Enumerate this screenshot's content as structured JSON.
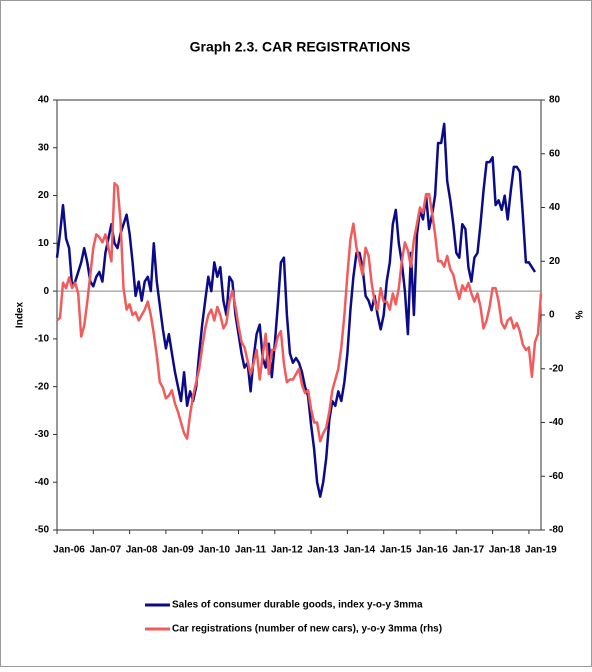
{
  "chart_data": {
    "type": "line",
    "title": "Graph 2.3. CAR REGISTRATIONS",
    "y_label": "Index",
    "y2_label": "%",
    "categories": [
      "Jan-06",
      null,
      null,
      null,
      null,
      null,
      null,
      null,
      null,
      null,
      null,
      null,
      "Jan-07",
      null,
      null,
      null,
      null,
      null,
      null,
      null,
      null,
      null,
      null,
      null,
      "Jan-08",
      null,
      null,
      null,
      null,
      null,
      null,
      null,
      null,
      null,
      null,
      null,
      "Jan-09",
      null,
      null,
      null,
      null,
      null,
      null,
      null,
      null,
      null,
      null,
      null,
      "Jan-10",
      null,
      null,
      null,
      null,
      null,
      null,
      null,
      null,
      null,
      null,
      null,
      "Jan-11",
      null,
      null,
      null,
      null,
      null,
      null,
      null,
      null,
      null,
      null,
      null,
      "Jan-12",
      null,
      null,
      null,
      null,
      null,
      null,
      null,
      null,
      null,
      null,
      null,
      "Jan-13",
      null,
      null,
      null,
      null,
      null,
      null,
      null,
      null,
      null,
      null,
      null,
      "Jan-14",
      null,
      null,
      null,
      null,
      null,
      null,
      null,
      null,
      null,
      null,
      null,
      "Jan-15",
      null,
      null,
      null,
      null,
      null,
      null,
      null,
      null,
      null,
      null,
      null,
      "Jan-16",
      null,
      null,
      null,
      null,
      null,
      null,
      null,
      null,
      null,
      null,
      null,
      "Jan-17",
      null,
      null,
      null,
      null,
      null,
      null,
      null,
      null,
      null,
      null,
      null,
      "Jan-18",
      null,
      null,
      null,
      null,
      null,
      null,
      null,
      null,
      null,
      null,
      null,
      "Jan-19",
      null,
      null,
      null,
      null
    ],
    "series": [
      {
        "name": "Sales of consumer durable goods, index y-o-y 3mma",
        "color": "#0b0b8a",
        "axis": "y",
        "values": [
          7,
          12,
          18,
          11,
          9,
          1,
          2,
          4,
          6,
          9,
          6,
          2,
          1,
          3,
          4,
          2,
          8,
          11,
          14,
          10,
          9,
          12,
          14,
          16,
          12,
          6,
          -1,
          2,
          -2,
          2,
          3,
          0,
          10,
          2,
          -3,
          -8,
          -12,
          -9,
          -13,
          -17,
          -20,
          -23,
          -17,
          -24,
          -21,
          -23,
          -20,
          -13,
          -7,
          -2,
          3,
          0,
          6,
          3,
          5,
          -2,
          -5,
          3,
          2,
          -5,
          -9,
          -13,
          -16,
          -15,
          -21,
          -14,
          -9,
          -7,
          -14,
          -16,
          -11,
          -18,
          -11,
          -3,
          6,
          7,
          -5,
          -13,
          -15,
          -14,
          -15,
          -17,
          -20,
          -22,
          -28,
          -33,
          -40,
          -43,
          -40,
          -35,
          -27,
          -23,
          -24,
          -21,
          -23,
          -19,
          -13,
          -4,
          3,
          8,
          8,
          5,
          -1,
          -2,
          -4,
          -1,
          -5,
          -8,
          -5,
          2,
          6,
          14,
          17,
          10,
          6,
          0,
          -9,
          8,
          -5,
          12,
          17,
          15,
          20,
          13,
          16,
          20,
          31,
          31,
          35,
          23,
          19,
          14,
          8,
          7,
          14,
          13,
          5,
          2,
          7,
          8,
          14,
          21,
          27,
          27,
          28,
          18,
          19,
          17,
          20,
          15,
          21,
          26,
          26,
          25,
          16,
          6,
          6,
          5,
          4,
          null,
          null
        ]
      },
      {
        "name": "Car registrations (number of new cars), y-o-y 3mma (rhs)",
        "color": "#f25b5b",
        "axis": "y2",
        "values": [
          -2,
          -1,
          12,
          10,
          14,
          10,
          12,
          8,
          -8,
          -4,
          5,
          15,
          25,
          30,
          29,
          27,
          30,
          25,
          20,
          49,
          48,
          35,
          10,
          2,
          4,
          0,
          1,
          -2,
          0,
          2,
          5,
          0,
          -7,
          -15,
          -25,
          -27,
          -31,
          -30,
          -28,
          -33,
          -36,
          -40,
          -44,
          -46,
          -37,
          -30,
          -25,
          -20,
          -12,
          -5,
          0,
          2,
          -2,
          3,
          0,
          -5,
          -3,
          5,
          9,
          3,
          -4,
          -10,
          -12,
          -17,
          -22,
          -18,
          -13,
          -24,
          -15,
          -7,
          -22,
          -13,
          -13,
          -8,
          -6,
          -18,
          -25,
          -24,
          -24,
          -22,
          -20,
          -26,
          -29,
          -28,
          -35,
          -40,
          -40,
          -47,
          -44,
          -42,
          -36,
          -28,
          -24,
          -20,
          -12,
          0,
          15,
          28,
          34,
          25,
          20,
          15,
          25,
          22,
          12,
          5,
          2,
          10,
          5,
          5,
          2,
          8,
          4,
          10,
          20,
          27,
          24,
          18,
          28,
          34,
          40,
          38,
          45,
          45,
          38,
          30,
          20,
          20,
          18,
          22,
          17,
          15,
          10,
          6,
          11,
          9,
          12,
          8,
          5,
          8,
          3,
          -5,
          -2,
          3,
          10,
          10,
          5,
          -3,
          -5,
          -2,
          -1,
          -5,
          -3,
          -6,
          -11,
          -13,
          -12,
          -23,
          -10,
          -7,
          8
        ]
      }
    ],
    "ylim": [
      -50,
      40
    ],
    "yticks": [
      40,
      30,
      20,
      10,
      0,
      -10,
      -20,
      -30,
      -40,
      -50
    ],
    "y2lim": [
      -80,
      80
    ],
    "y2ticks": [
      80,
      60,
      40,
      20,
      0,
      -20,
      -40,
      -60,
      -80
    ],
    "grid": false,
    "legend": "bottom"
  }
}
